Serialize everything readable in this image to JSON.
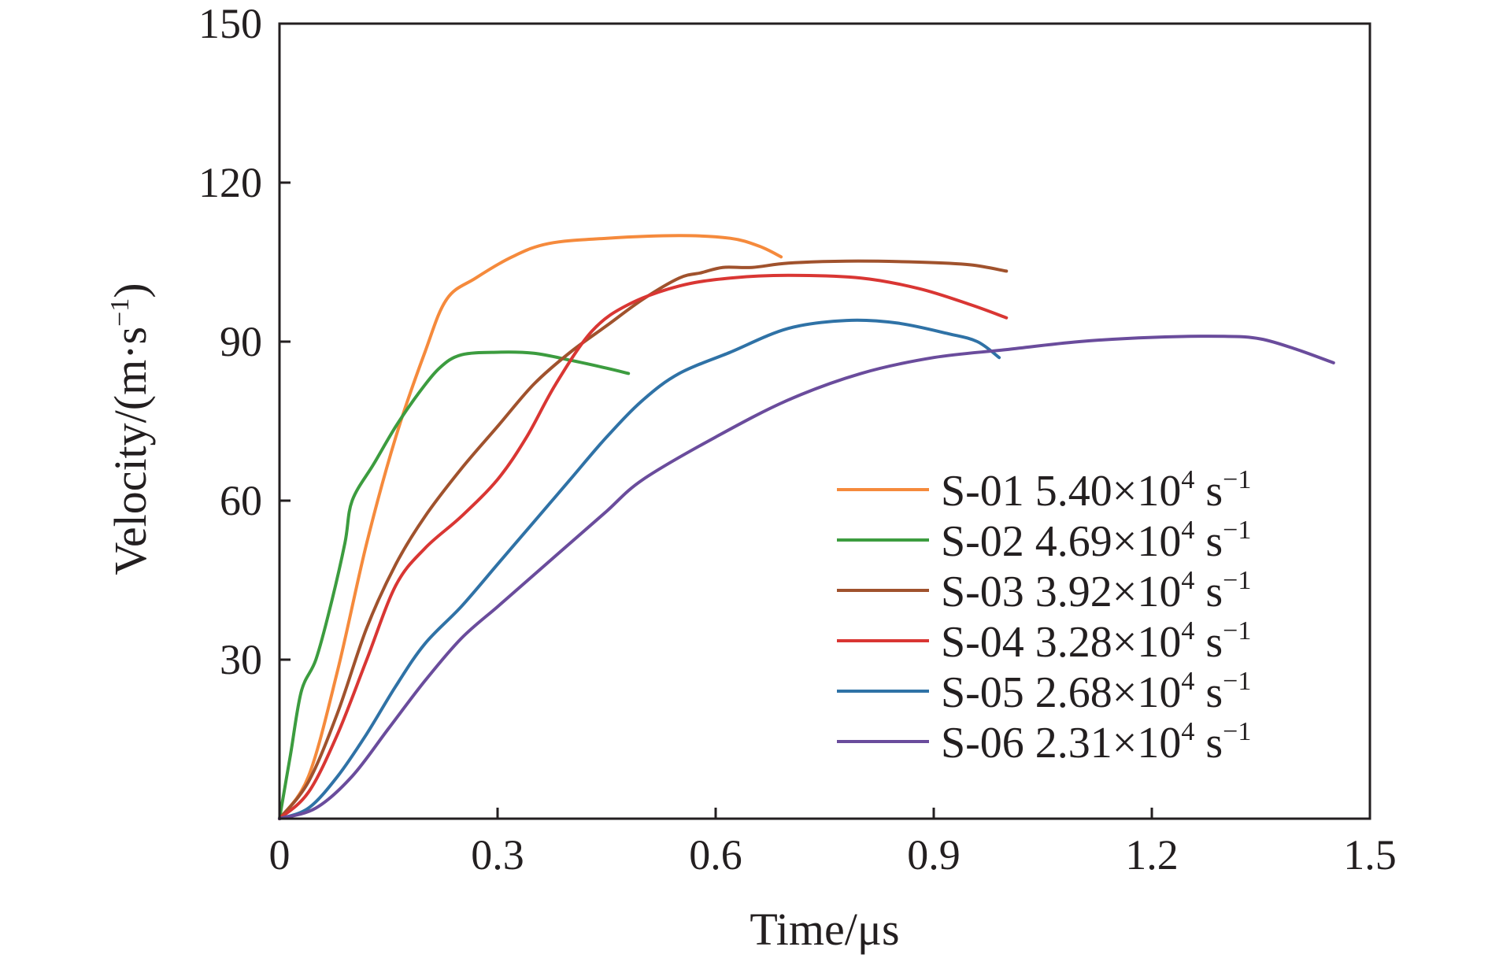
{
  "chart_data": {
    "type": "line",
    "title": "",
    "xlabel": "Time/μs",
    "ylabel": "Velocity/(m·s−1)",
    "ylabel_parts": {
      "text": "Velocity/(m·s",
      "sup": "−1",
      "close": ")"
    },
    "xlim": [
      0,
      1.5
    ],
    "ylim": [
      0,
      150
    ],
    "xticks": [
      "0",
      "0.3",
      "0.6",
      "0.9",
      "1.2",
      "1.5"
    ],
    "yticks": [
      "30",
      "60",
      "90",
      "120",
      "150"
    ],
    "grid": false,
    "legend_position": "lower-right",
    "series": [
      {
        "name": "S-01",
        "rate": "5.40×10",
        "rate_exp": "4",
        "unit": "s",
        "unit_exp": "−1",
        "color": "#f58a3c",
        "points": [
          [
            0,
            0
          ],
          [
            0.04,
            8
          ],
          [
            0.08,
            28
          ],
          [
            0.12,
            52
          ],
          [
            0.16,
            72
          ],
          [
            0.2,
            88
          ],
          [
            0.23,
            98
          ],
          [
            0.27,
            102
          ],
          [
            0.32,
            106
          ],
          [
            0.37,
            108.5
          ],
          [
            0.45,
            109.5
          ],
          [
            0.55,
            110
          ],
          [
            0.62,
            109.5
          ],
          [
            0.66,
            108
          ],
          [
            0.69,
            106
          ]
        ]
      },
      {
        "name": "S-02",
        "rate": "4.69×10",
        "rate_exp": "4",
        "unit": "s",
        "unit_exp": "−1",
        "color": "#3c9c3f",
        "points": [
          [
            0,
            0
          ],
          [
            0.015,
            12
          ],
          [
            0.03,
            24
          ],
          [
            0.05,
            30
          ],
          [
            0.07,
            40
          ],
          [
            0.09,
            52
          ],
          [
            0.1,
            60
          ],
          [
            0.13,
            67
          ],
          [
            0.16,
            74
          ],
          [
            0.19,
            80
          ],
          [
            0.22,
            85
          ],
          [
            0.25,
            87.5
          ],
          [
            0.3,
            88
          ],
          [
            0.35,
            87.8
          ],
          [
            0.4,
            86.5
          ],
          [
            0.45,
            85
          ],
          [
            0.48,
            84
          ]
        ]
      },
      {
        "name": "S-03",
        "rate": "3.92×10",
        "rate_exp": "4",
        "unit": "s",
        "unit_exp": "−1",
        "color": "#a0522d",
        "points": [
          [
            0,
            0
          ],
          [
            0.04,
            7
          ],
          [
            0.08,
            20
          ],
          [
            0.12,
            36
          ],
          [
            0.16,
            48
          ],
          [
            0.2,
            57
          ],
          [
            0.25,
            66
          ],
          [
            0.3,
            74
          ],
          [
            0.35,
            82
          ],
          [
            0.4,
            88
          ],
          [
            0.45,
            93
          ],
          [
            0.5,
            98
          ],
          [
            0.55,
            102
          ],
          [
            0.58,
            103
          ],
          [
            0.61,
            104
          ],
          [
            0.65,
            104
          ],
          [
            0.7,
            104.8
          ],
          [
            0.78,
            105.2
          ],
          [
            0.88,
            105
          ],
          [
            0.95,
            104.5
          ],
          [
            1.0,
            103.3
          ]
        ]
      },
      {
        "name": "S-04",
        "rate": "3.28×10",
        "rate_exp": "4",
        "unit": "s",
        "unit_exp": "−1",
        "color": "#d93633",
        "points": [
          [
            0,
            0
          ],
          [
            0.04,
            5
          ],
          [
            0.08,
            16
          ],
          [
            0.12,
            30
          ],
          [
            0.16,
            44
          ],
          [
            0.2,
            51
          ],
          [
            0.25,
            57
          ],
          [
            0.3,
            64
          ],
          [
            0.34,
            72
          ],
          [
            0.38,
            82
          ],
          [
            0.43,
            92
          ],
          [
            0.48,
            97
          ],
          [
            0.55,
            100.5
          ],
          [
            0.62,
            102
          ],
          [
            0.7,
            102.5
          ],
          [
            0.8,
            102
          ],
          [
            0.88,
            100
          ],
          [
            0.95,
            97
          ],
          [
            1.0,
            94.5
          ]
        ]
      },
      {
        "name": "S-05",
        "rate": "2.68×10",
        "rate_exp": "4",
        "unit": "s",
        "unit_exp": "−1",
        "color": "#2f72a6",
        "points": [
          [
            0,
            0
          ],
          [
            0.04,
            2
          ],
          [
            0.08,
            8
          ],
          [
            0.12,
            16
          ],
          [
            0.16,
            25
          ],
          [
            0.2,
            33
          ],
          [
            0.25,
            40
          ],
          [
            0.3,
            48
          ],
          [
            0.35,
            56
          ],
          [
            0.4,
            64
          ],
          [
            0.45,
            72
          ],
          [
            0.5,
            79
          ],
          [
            0.55,
            84
          ],
          [
            0.62,
            88
          ],
          [
            0.7,
            92.5
          ],
          [
            0.78,
            94
          ],
          [
            0.85,
            93.5
          ],
          [
            0.92,
            91.5
          ],
          [
            0.96,
            90
          ],
          [
            0.99,
            87
          ]
        ]
      },
      {
        "name": "S-06",
        "rate": "2.31×10",
        "rate_exp": "4",
        "unit": "s",
        "unit_exp": "−1",
        "color": "#6a4c9c",
        "points": [
          [
            0,
            0
          ],
          [
            0.05,
            2
          ],
          [
            0.1,
            8
          ],
          [
            0.15,
            17
          ],
          [
            0.2,
            26
          ],
          [
            0.25,
            34
          ],
          [
            0.3,
            40
          ],
          [
            0.35,
            46
          ],
          [
            0.4,
            52
          ],
          [
            0.45,
            58
          ],
          [
            0.5,
            64
          ],
          [
            0.6,
            72
          ],
          [
            0.7,
            79
          ],
          [
            0.8,
            84
          ],
          [
            0.9,
            87
          ],
          [
            1.0,
            88.5
          ],
          [
            1.1,
            90
          ],
          [
            1.2,
            90.8
          ],
          [
            1.3,
            91
          ],
          [
            1.35,
            90.5
          ],
          [
            1.4,
            88.5
          ],
          [
            1.45,
            86
          ]
        ]
      }
    ]
  }
}
